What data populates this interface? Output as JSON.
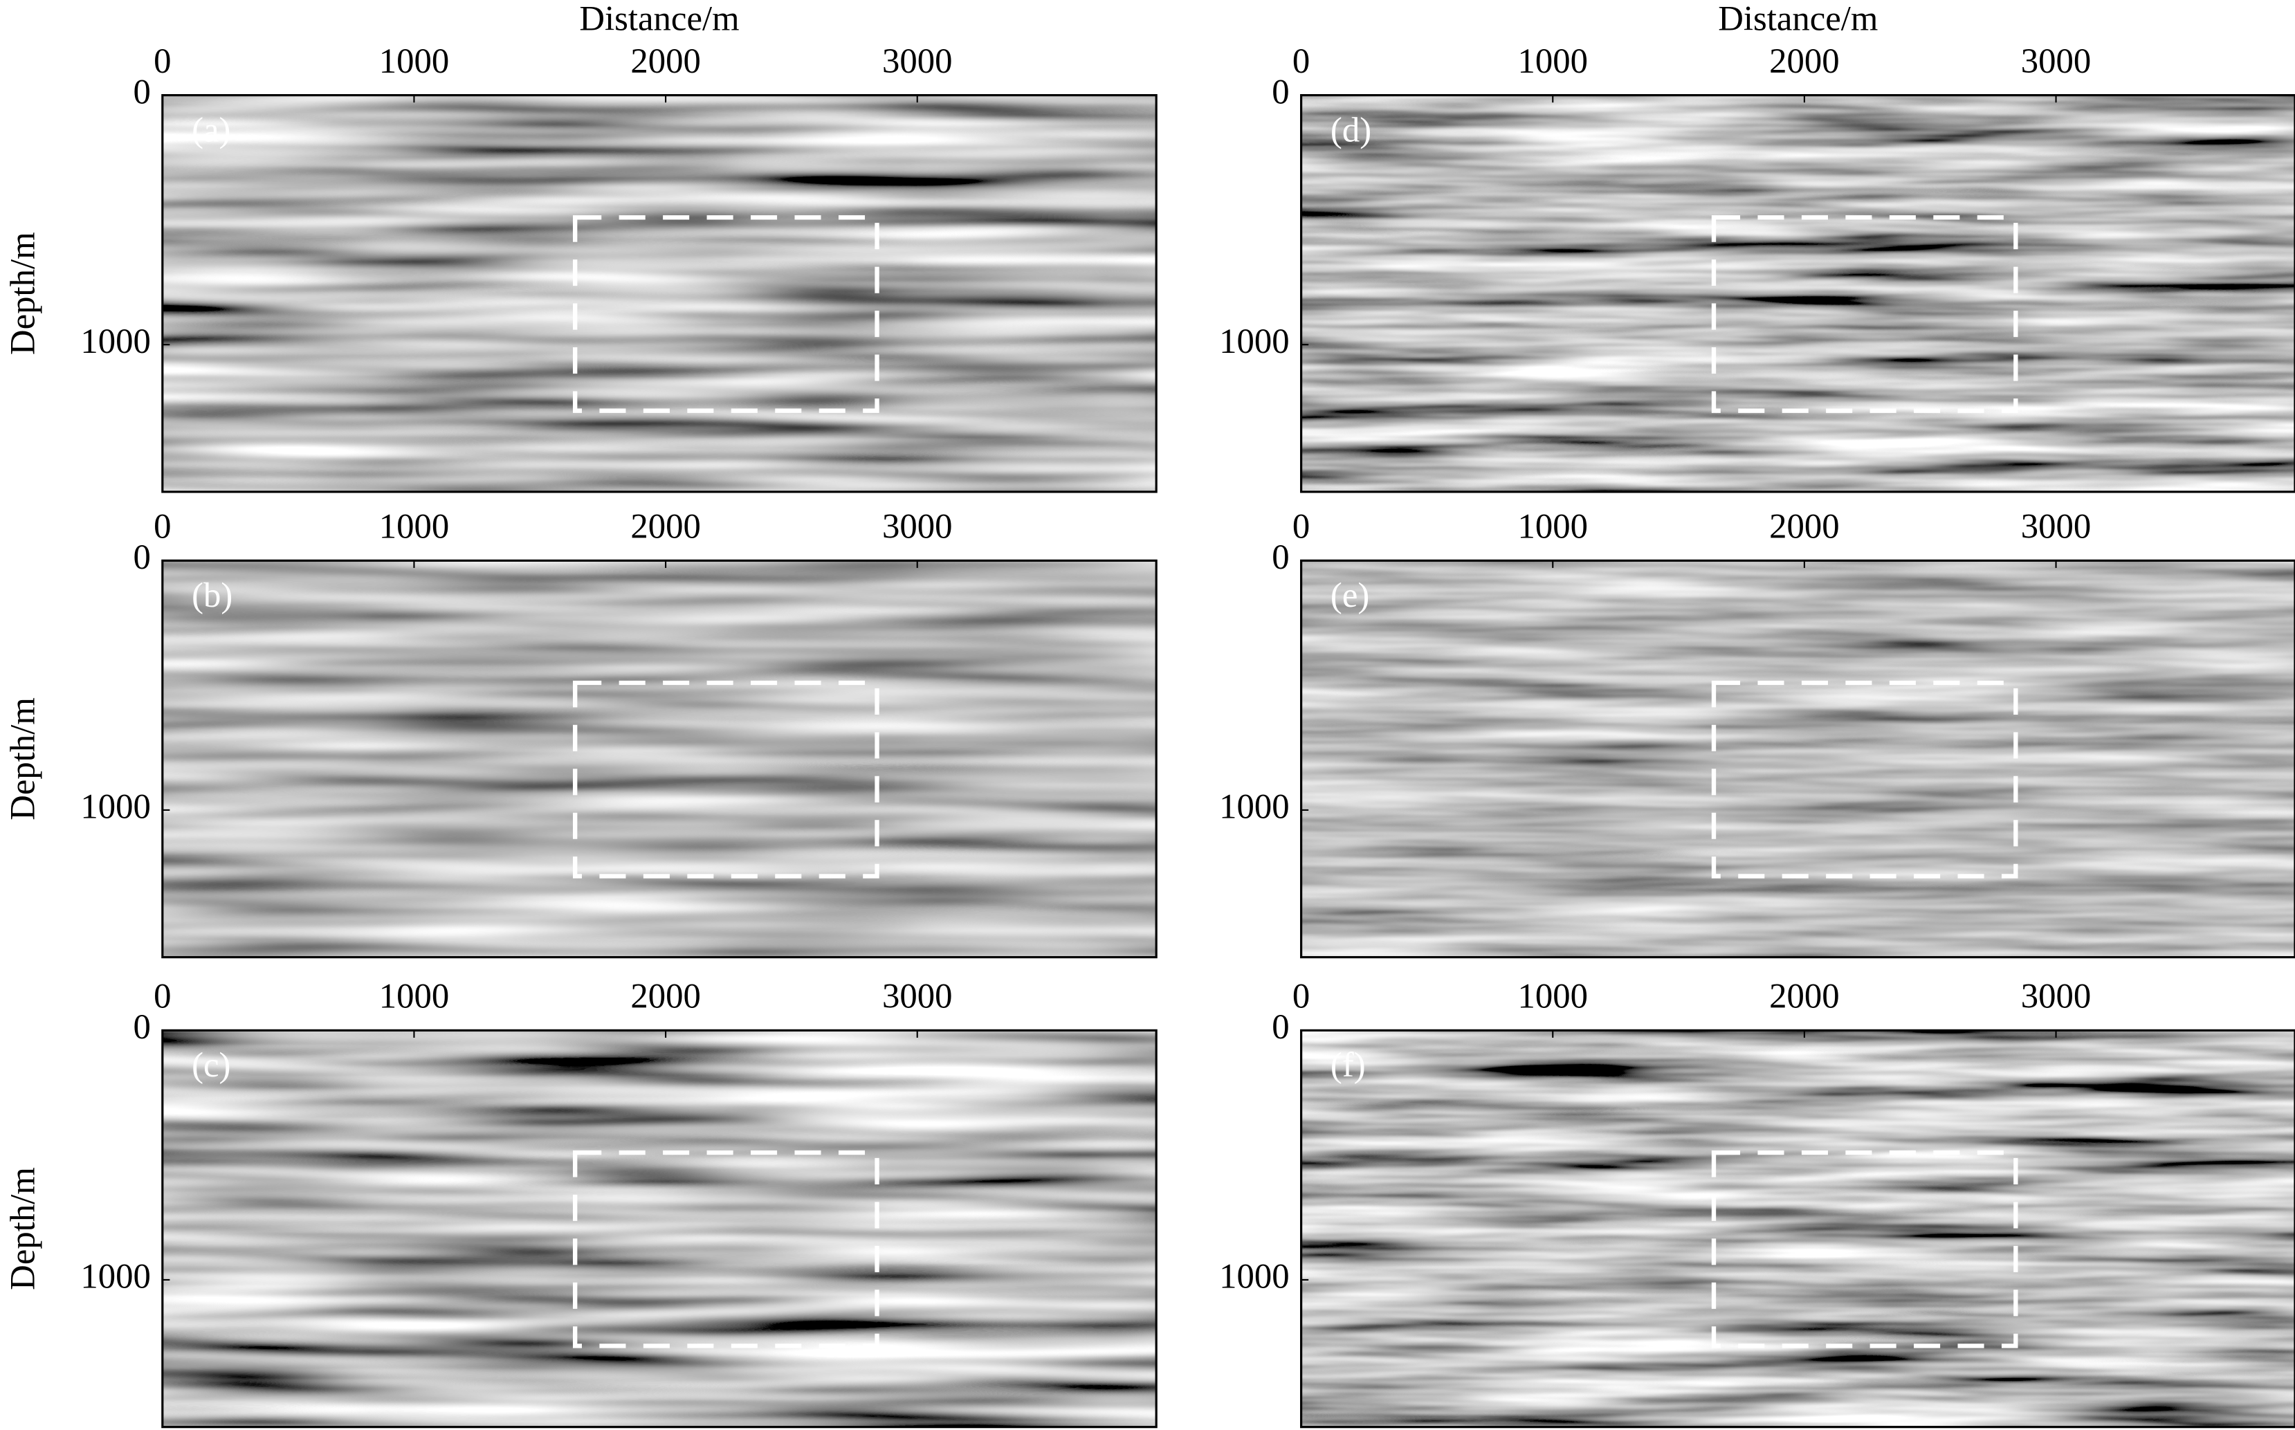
{
  "chart_data": [
    {
      "type": "image",
      "panel_label": "(a)",
      "xlabel": "Distance/m",
      "ylabel": "Depth/m",
      "xlim": [
        0,
        3950
      ],
      "ylim": [
        0,
        1590
      ],
      "y_inverted": true,
      "xticks": [
        0,
        1000,
        2000,
        3000
      ],
      "yticks": [
        0,
        1000
      ],
      "box": {
        "x": [
          1640,
          2840
        ],
        "y": [
          490,
          1265
        ]
      },
      "box_color": "#ffffff"
    },
    {
      "type": "image",
      "panel_label": "(b)",
      "ylabel": "Depth/m",
      "xlim": [
        0,
        3950
      ],
      "ylim": [
        0,
        1590
      ],
      "y_inverted": true,
      "xticks": [
        0,
        1000,
        2000,
        3000
      ],
      "yticks": [
        0,
        1000
      ],
      "box": {
        "x": [
          1640,
          2840
        ],
        "y": [
          490,
          1265
        ]
      },
      "box_color": "#ffffff"
    },
    {
      "type": "image",
      "panel_label": "(c)",
      "ylabel": "Depth/m",
      "xlim": [
        0,
        3950
      ],
      "ylim": [
        0,
        1590
      ],
      "y_inverted": true,
      "xticks": [
        0,
        1000,
        2000,
        3000
      ],
      "yticks": [
        0,
        1000
      ],
      "box": {
        "x": [
          1640,
          2840
        ],
        "y": [
          490,
          1265
        ]
      },
      "box_color": "#ffffff"
    },
    {
      "type": "image",
      "panel_label": "(d)",
      "xlabel": "Distance/m",
      "xlim": [
        0,
        3950
      ],
      "ylim": [
        0,
        1590
      ],
      "y_inverted": true,
      "xticks": [
        0,
        1000,
        2000,
        3000
      ],
      "yticks": [
        0,
        1000
      ],
      "box": {
        "x": [
          1640,
          2840
        ],
        "y": [
          490,
          1265
        ]
      },
      "box_color": "#ffffff"
    },
    {
      "type": "image",
      "panel_label": "(e)",
      "xlim": [
        0,
        3950
      ],
      "ylim": [
        0,
        1590
      ],
      "y_inverted": true,
      "xticks": [
        0,
        1000,
        2000,
        3000
      ],
      "yticks": [
        0,
        1000
      ],
      "box": {
        "x": [
          1640,
          2840
        ],
        "y": [
          490,
          1265
        ]
      },
      "box_color": "#ffffff"
    },
    {
      "type": "image",
      "panel_label": "(f)",
      "xlim": [
        0,
        3950
      ],
      "ylim": [
        0,
        1590
      ],
      "y_inverted": true,
      "xticks": [
        0,
        1000,
        2000,
        3000
      ],
      "yticks": [
        0,
        1000
      ],
      "box": {
        "x": [
          1640,
          2840
        ],
        "y": [
          490,
          1265
        ]
      },
      "box_color": "#ffffff"
    }
  ]
}
